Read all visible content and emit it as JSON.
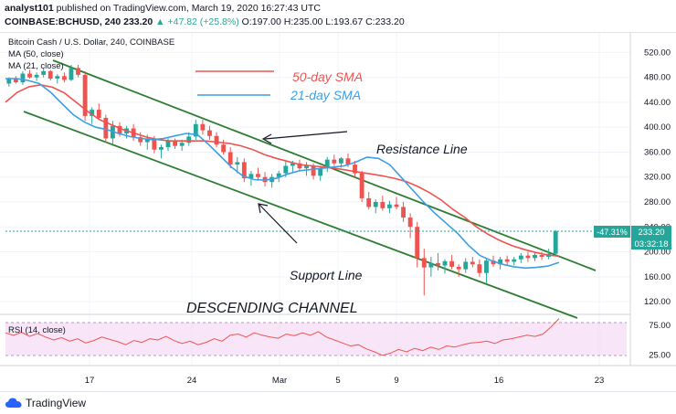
{
  "header": {
    "publisher": "analyst101",
    "published_text": "published on TradingView.com, March 19, 2020 16:27:43 UTC",
    "symbol": "COINBASE:BCHUSD, 240",
    "last": "233.20",
    "change": "▲ +47.82 (+25.8%)",
    "ohlc": "O:197.00 H:235.00 L:193.67 C:233.20"
  },
  "legend": {
    "title": "Bitcoin Cash / U.S. Dollar, 240, COINBASE",
    "ma50": "MA (50, close)",
    "ma21": "MA (21, close)",
    "rsi": "RSI (14, close)"
  },
  "annotations": {
    "sma50": "50-day SMA",
    "sma21": "21-day SMA",
    "resistance": "Resistance Line",
    "support": "Support Line",
    "channel": "DESCENDING CHANNEL"
  },
  "price_tag": {
    "pct": "-47.31%",
    "price": "233.20",
    "timer": "03:32:18"
  },
  "footer": {
    "brand": "TradingView"
  },
  "colors": {
    "up": "#26a69a",
    "down": "#ef5350",
    "ma50": "#ef5350",
    "ma21": "#3d9ee6",
    "channel": "#2e7d32",
    "rsi": "#ef5350",
    "rsi_band": "#f3d6f3",
    "price_tag": "#26a69a"
  },
  "chart_data": {
    "type": "candlestick",
    "y_ticks": [
      "520.00",
      "480.00",
      "440.00",
      "400.00",
      "360.00",
      "320.00",
      "280.00",
      "240.00",
      "200.00",
      "160.00",
      "120.00"
    ],
    "y_range": [
      104,
      544
    ],
    "x_ticks": [
      "17",
      "24",
      "Mar",
      "5",
      "9",
      "16",
      "23"
    ],
    "rsi_ticks": [
      "75.00",
      "25.00"
    ],
    "rsi_range": [
      10,
      90
    ],
    "candles": [
      [
        470,
        480,
        465,
        478
      ],
      [
        478,
        482,
        470,
        472
      ],
      [
        472,
        490,
        468,
        486
      ],
      [
        486,
        492,
        478,
        480
      ],
      [
        480,
        488,
        474,
        484
      ],
      [
        484,
        495,
        480,
        490
      ],
      [
        490,
        492,
        475,
        478
      ],
      [
        478,
        485,
        470,
        482
      ],
      [
        482,
        488,
        472,
        476
      ],
      [
        476,
        500,
        474,
        495
      ],
      [
        495,
        500,
        480,
        484
      ],
      [
        484,
        490,
        410,
        418
      ],
      [
        418,
        432,
        405,
        428
      ],
      [
        428,
        438,
        412,
        415
      ],
      [
        415,
        420,
        375,
        382
      ],
      [
        382,
        410,
        370,
        402
      ],
      [
        402,
        408,
        385,
        390
      ],
      [
        390,
        402,
        382,
        398
      ],
      [
        398,
        405,
        378,
        384
      ],
      [
        384,
        392,
        370,
        376
      ],
      [
        376,
        388,
        364,
        382
      ],
      [
        382,
        386,
        358,
        364
      ],
      [
        364,
        372,
        350,
        368
      ],
      [
        368,
        384,
        362,
        378
      ],
      [
        378,
        382,
        365,
        370
      ],
      [
        370,
        380,
        362,
        375
      ],
      [
        375,
        392,
        370,
        385
      ],
      [
        385,
        412,
        380,
        405
      ],
      [
        405,
        412,
        388,
        395
      ],
      [
        395,
        402,
        380,
        386
      ],
      [
        386,
        392,
        368,
        372
      ],
      [
        372,
        380,
        356,
        360
      ],
      [
        360,
        368,
        334,
        340
      ],
      [
        340,
        352,
        326,
        344
      ],
      [
        344,
        350,
        312,
        318
      ],
      [
        318,
        330,
        306,
        325
      ],
      [
        325,
        335,
        314,
        320
      ],
      [
        320,
        328,
        305,
        312
      ],
      [
        312,
        325,
        303,
        320
      ],
      [
        320,
        330,
        312,
        326
      ],
      [
        326,
        345,
        320,
        338
      ],
      [
        338,
        346,
        328,
        342
      ],
      [
        342,
        348,
        330,
        334
      ],
      [
        334,
        344,
        322,
        338
      ],
      [
        338,
        342,
        316,
        322
      ],
      [
        322,
        338,
        314,
        334
      ],
      [
        334,
        352,
        328,
        348
      ],
      [
        348,
        356,
        338,
        342
      ],
      [
        342,
        352,
        335,
        350
      ],
      [
        350,
        358,
        336,
        340
      ],
      [
        340,
        346,
        320,
        326
      ],
      [
        326,
        330,
        280,
        286
      ],
      [
        286,
        296,
        268,
        272
      ],
      [
        272,
        284,
        262,
        280
      ],
      [
        280,
        290,
        266,
        270
      ],
      [
        270,
        282,
        262,
        276
      ],
      [
        276,
        288,
        268,
        272
      ],
      [
        272,
        280,
        248,
        255
      ],
      [
        255,
        262,
        222,
        240
      ],
      [
        240,
        248,
        175,
        190
      ],
      [
        190,
        205,
        130,
        175
      ],
      [
        175,
        192,
        160,
        182
      ],
      [
        182,
        198,
        170,
        178
      ],
      [
        178,
        188,
        165,
        185
      ],
      [
        185,
        195,
        172,
        176
      ],
      [
        176,
        180,
        160,
        172
      ],
      [
        172,
        190,
        166,
        184
      ],
      [
        184,
        192,
        175,
        180
      ],
      [
        180,
        188,
        160,
        166
      ],
      [
        166,
        190,
        150,
        186
      ],
      [
        186,
        194,
        176,
        180
      ],
      [
        180,
        192,
        172,
        188
      ],
      [
        188,
        194,
        178,
        184
      ],
      [
        184,
        192,
        178,
        188
      ],
      [
        188,
        198,
        182,
        194
      ],
      [
        194,
        200,
        184,
        190
      ],
      [
        190,
        198,
        185,
        195
      ],
      [
        195,
        200,
        187,
        192
      ],
      [
        192,
        205,
        188,
        197
      ],
      [
        197,
        235,
        193.67,
        233.2
      ]
    ],
    "ma50": [
      440,
      456,
      465,
      468,
      464,
      455,
      440,
      425,
      412,
      404,
      396,
      390,
      384,
      380,
      378,
      378,
      378,
      378,
      376,
      374,
      370,
      364,
      356,
      350,
      345,
      340,
      338,
      336,
      334,
      331,
      328,
      325,
      322,
      318,
      313,
      305,
      295,
      283,
      268,
      255,
      240,
      228,
      218,
      210,
      204,
      199,
      195,
      193
    ],
    "ma21": [
      478,
      478,
      475,
      470,
      456,
      438,
      420,
      408,
      400,
      396,
      390,
      385,
      382,
      380,
      382,
      386,
      390,
      388,
      372,
      354,
      336,
      322,
      316,
      315,
      318,
      325,
      330,
      332,
      334,
      336,
      338,
      344,
      352,
      350,
      340,
      320,
      300,
      280,
      262,
      246,
      230,
      210,
      194,
      186,
      180,
      176,
      174,
      175,
      177,
      183
    ],
    "rsi": [
      62,
      58,
      63,
      56,
      61,
      55,
      50,
      54,
      48,
      52,
      45,
      49,
      55,
      51,
      47,
      42,
      49,
      46,
      52,
      50,
      56,
      49,
      44,
      48,
      42,
      46,
      52,
      48,
      58,
      60,
      55,
      62,
      58,
      55,
      53,
      60,
      57,
      62,
      58,
      64,
      55,
      50,
      45,
      40,
      42,
      35,
      30,
      24,
      28,
      34,
      30,
      36,
      32,
      38,
      34,
      40,
      38,
      42,
      45,
      46,
      48,
      44,
      50,
      52,
      55,
      58,
      56,
      60,
      72,
      86
    ]
  }
}
